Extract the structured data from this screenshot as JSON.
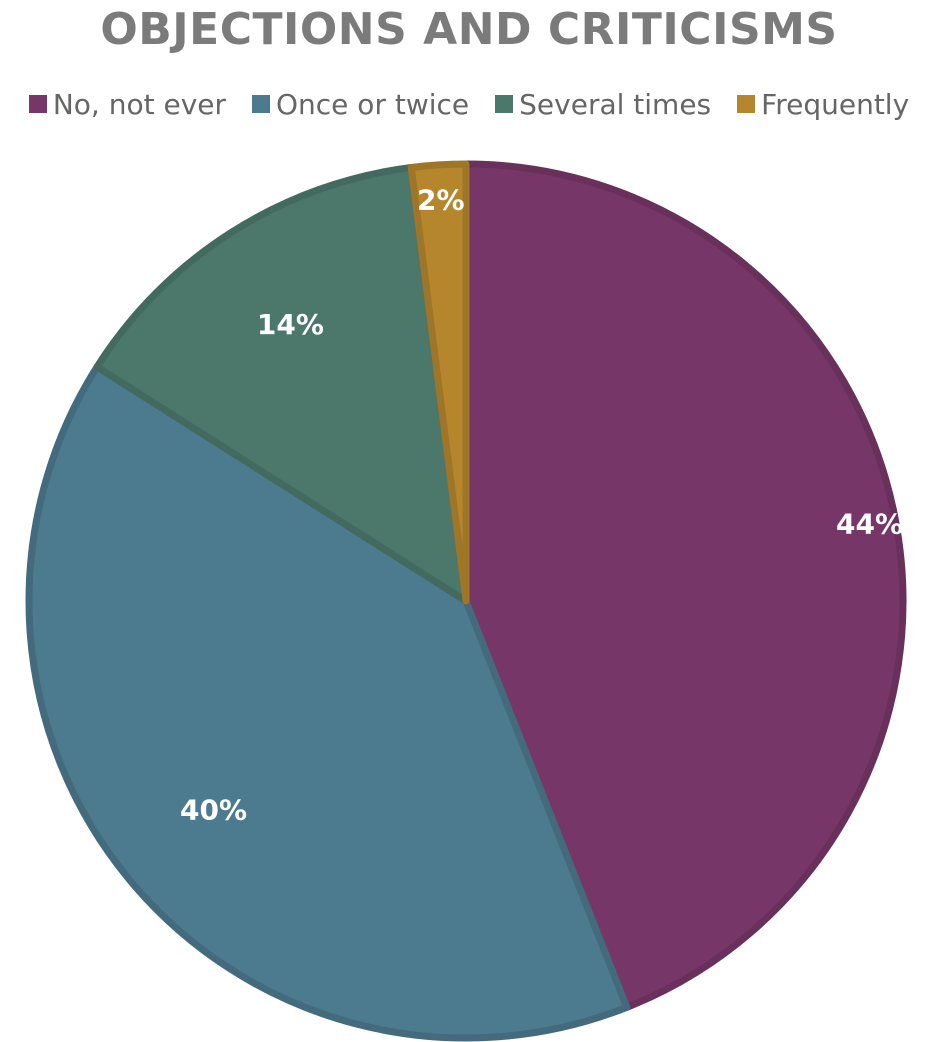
{
  "chart_data": {
    "type": "pie",
    "title": "OBJECTIONS AND CRITICISMS",
    "categories": [
      "No, not ever",
      "Once or twice",
      "Several times",
      "Frequently"
    ],
    "values": [
      44,
      40,
      14,
      2
    ],
    "labels": [
      "44%",
      "40%",
      "14%",
      "2%"
    ],
    "colors": [
      "#773668",
      "#4c7a8e",
      "#4c786b",
      "#b5862c"
    ],
    "legend_position": "top"
  }
}
